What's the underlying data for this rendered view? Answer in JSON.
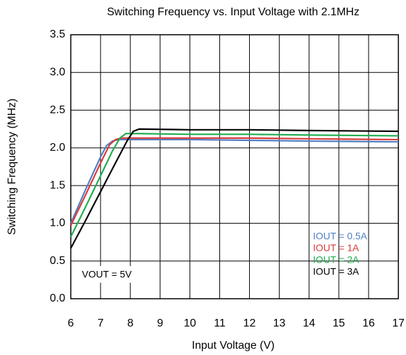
{
  "chart_data": {
    "type": "line",
    "title": "Switching Frequency vs. Input Voltage with 2.1MHz",
    "x_label": "Input Voltage (V)",
    "y_label": "Switching Frequency (MHz)",
    "annotation": "VOUT = 5V",
    "xlim": [
      6,
      17
    ],
    "xticks": [
      6,
      7,
      8,
      9,
      10,
      11,
      12,
      13,
      14,
      15,
      16,
      17
    ],
    "ylim": [
      0,
      3.5
    ],
    "yticks": [
      {
        "value": 0,
        "label": "0.0"
      },
      0.5,
      {
        "value": 1,
        "label": "1.0"
      },
      1.5,
      {
        "value": 2,
        "label": "2.0"
      },
      2.5,
      {
        "value": 3,
        "label": "3.0"
      },
      3.5
    ],
    "grid": true,
    "legend": "lower right",
    "series": [
      {
        "name": "IOUT = 0.5A",
        "color": "#4f7fc4",
        "x": [
          6,
          6.5,
          7,
          7.2,
          7.4,
          7.6,
          8,
          10,
          12,
          14,
          17
        ],
        "values": [
          1.0,
          1.45,
          1.88,
          2.03,
          2.09,
          2.11,
          2.11,
          2.11,
          2.1,
          2.09,
          2.08
        ]
      },
      {
        "name": "IOUT = 1A",
        "color": "#d93a3a",
        "x": [
          6,
          6.5,
          7,
          7.3,
          7.5,
          7.7,
          8,
          10,
          12,
          14,
          17
        ],
        "values": [
          0.97,
          1.38,
          1.8,
          2.04,
          2.11,
          2.13,
          2.13,
          2.13,
          2.13,
          2.12,
          2.11
        ]
      },
      {
        "name": "IOUT = 2A",
        "color": "#1fae4f",
        "x": [
          6,
          6.5,
          7,
          7.4,
          7.65,
          7.85,
          8.2,
          10,
          12,
          14,
          17
        ],
        "values": [
          0.82,
          1.22,
          1.63,
          1.96,
          2.13,
          2.19,
          2.19,
          2.18,
          2.18,
          2.17,
          2.16
        ]
      },
      {
        "name": "IOUT = 3A",
        "color": "#000000",
        "x": [
          6,
          6.5,
          7,
          7.5,
          7.9,
          8.1,
          8.3,
          10,
          12,
          14,
          17
        ],
        "values": [
          0.67,
          1.04,
          1.42,
          1.8,
          2.1,
          2.22,
          2.25,
          2.24,
          2.24,
          2.23,
          2.22
        ]
      }
    ]
  }
}
